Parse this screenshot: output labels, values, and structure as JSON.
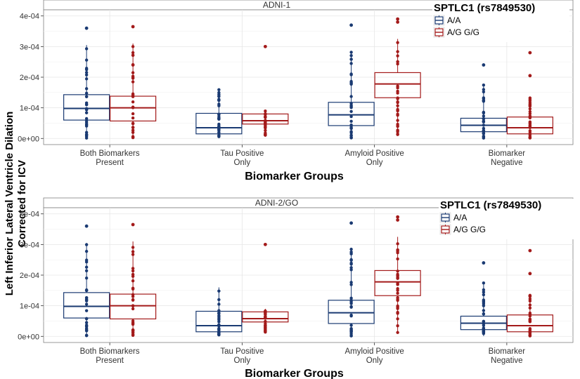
{
  "figure": {
    "y_label_line1": "Left Inferior Lateral Ventricle Dilation",
    "y_label_line2": "Corrected for ICV"
  },
  "colors": {
    "aa": "#1a3a72",
    "ag": "#a31a1a",
    "grid": "#e6e6e6",
    "border": "#808080",
    "axis_text": "#333333"
  },
  "chart_data": [
    {
      "type": "box",
      "title": "ADNI-1",
      "xlabel": "Biomarker Groups",
      "ylabel": "Left Inferior Lateral Ventricle Dilation Corrected for ICV",
      "ylim": [
        -2e-05,
        0.00042
      ],
      "yticks": [
        0,
        0.0001,
        0.0002,
        0.0003,
        0.0004
      ],
      "ytick_labels": [
        "0e+00",
        "1e-04",
        "2e-04",
        "3e-04",
        "4e-04"
      ],
      "categories": [
        {
          "line1": "Both Biomarkers",
          "line2": "Present"
        },
        {
          "line1": "Tau Positive",
          "line2": "Only"
        },
        {
          "line1": "Amyloid Positive",
          "line2": "Only"
        },
        {
          "line1": "Biomarker",
          "line2": "Negative"
        }
      ],
      "legend": {
        "title": "SPTLC1 (rs7849530)",
        "entries": [
          "A/A",
          "A/G G/G"
        ],
        "position": "top-right"
      },
      "series": [
        {
          "name": "A/A",
          "boxes": [
            {
              "q1": 6e-05,
              "median": 9.8e-05,
              "q3": 0.000143,
              "min": 1e-06,
              "max": 0.000305,
              "outliers": [
                0.00036
              ]
            },
            {
              "q1": 1.5e-05,
              "median": 3.5e-05,
              "q3": 8.2e-05,
              "min": 5e-06,
              "max": 0.00016,
              "outliers": []
            },
            {
              "q1": 4.2e-05,
              "median": 7.7e-05,
              "q3": 0.000118,
              "min": 1e-06,
              "max": 0.000285,
              "outliers": [
                0.00037
              ]
            },
            {
              "q1": 2.2e-05,
              "median": 4.3e-05,
              "q3": 6.6e-05,
              "min": 1e-06,
              "max": 0.000175,
              "outliers": [
                0.00024
              ]
            }
          ]
        },
        {
          "name": "A/G G/G",
          "boxes": [
            {
              "q1": 5.7e-05,
              "median": 0.0001,
              "q3": 0.000138,
              "min": 1e-06,
              "max": 0.00031,
              "outliers": [
                0.000365
              ]
            },
            {
              "q1": 4.7e-05,
              "median": 5.8e-05,
              "q3": 8e-05,
              "min": 1e-05,
              "max": 9e-05,
              "outliers": [
                0.0003
              ]
            },
            {
              "q1": 0.000133,
              "median": 0.000178,
              "q3": 0.000215,
              "min": 1.2e-05,
              "max": 0.000325,
              "outliers": [
                0.00038,
                0.00039
              ]
            },
            {
              "q1": 1.5e-05,
              "median": 3.5e-05,
              "q3": 7e-05,
              "min": 1e-06,
              "max": 0.000135,
              "outliers": [
                0.000205,
                0.00028
              ]
            }
          ]
        }
      ]
    },
    {
      "type": "box",
      "title": "ADNI-2/GO",
      "xlabel": "Biomarker Groups",
      "ylabel": "Left Inferior Lateral Ventricle Dilation Corrected for ICV",
      "ylim": [
        -2e-05,
        0.00042
      ],
      "yticks": [
        0,
        0.0001,
        0.0002,
        0.0003,
        0.0004
      ],
      "ytick_labels": [
        "0e+00",
        "1e-04",
        "2e-04",
        "3e-04",
        "4e-04"
      ],
      "categories": [
        {
          "line1": "Both Biomarkers",
          "line2": "Present"
        },
        {
          "line1": "Tau Positive",
          "line2": "Only"
        },
        {
          "line1": "Amyloid Positive",
          "line2": "Only"
        },
        {
          "line1": "Biomarker",
          "line2": "Negative"
        }
      ],
      "legend": {
        "title": "SPTLC1 (rs7849530)",
        "entries": [
          "A/A",
          "A/G G/G"
        ],
        "position": "top-right"
      },
      "series": [
        {
          "name": "A/A",
          "boxes": [
            {
              "q1": 6e-05,
              "median": 9.8e-05,
              "q3": 0.000143,
              "min": 1e-06,
              "max": 0.000305,
              "outliers": [
                0.00036
              ]
            },
            {
              "q1": 1.5e-05,
              "median": 3.5e-05,
              "q3": 8.2e-05,
              "min": 5e-06,
              "max": 0.00016,
              "outliers": []
            },
            {
              "q1": 4.2e-05,
              "median": 7.7e-05,
              "q3": 0.000118,
              "min": 1e-06,
              "max": 0.000285,
              "outliers": [
                0.00037
              ]
            },
            {
              "q1": 2.2e-05,
              "median": 4.3e-05,
              "q3": 6.6e-05,
              "min": 1e-06,
              "max": 0.000175,
              "outliers": [
                0.00024
              ]
            }
          ]
        },
        {
          "name": "A/G G/G",
          "boxes": [
            {
              "q1": 5.7e-05,
              "median": 0.0001,
              "q3": 0.000138,
              "min": 1e-06,
              "max": 0.00031,
              "outliers": [
                0.000365
              ]
            },
            {
              "q1": 4.7e-05,
              "median": 5.8e-05,
              "q3": 8e-05,
              "min": 1e-05,
              "max": 9e-05,
              "outliers": [
                0.0003
              ]
            },
            {
              "q1": 0.000133,
              "median": 0.000178,
              "q3": 0.000215,
              "min": 1.2e-05,
              "max": 0.000325,
              "outliers": [
                0.00038,
                0.00039
              ]
            },
            {
              "q1": 1.5e-05,
              "median": 3.5e-05,
              "q3": 7e-05,
              "min": 1e-06,
              "max": 0.000135,
              "outliers": [
                0.000205,
                0.00028
              ]
            }
          ]
        }
      ]
    }
  ]
}
